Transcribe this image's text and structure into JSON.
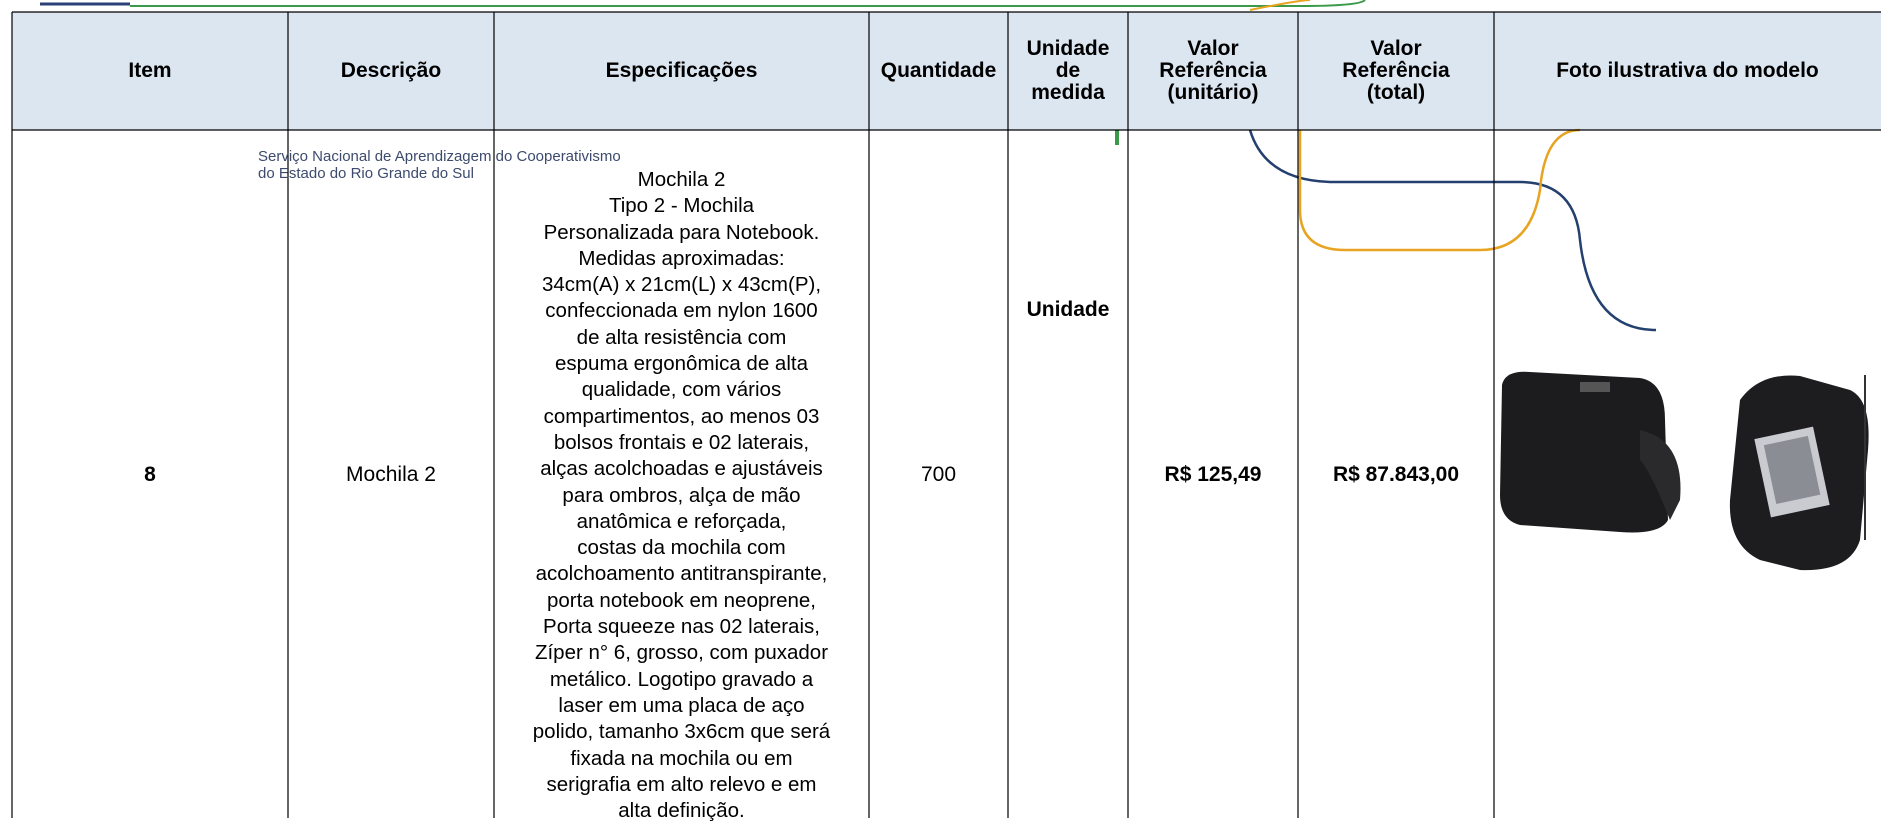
{
  "table": {
    "headers": [
      [
        "Item"
      ],
      [
        "Descrição"
      ],
      [
        "Especificações"
      ],
      [
        "Quantidade"
      ],
      [
        "Unidade",
        "de",
        "medida"
      ],
      [
        "Valor",
        "Referência",
        "(unitário)"
      ],
      [
        "Valor",
        "Referência",
        "(total)"
      ],
      [
        "Foto ilustrativa do modelo"
      ]
    ],
    "rows": [
      {
        "item": "8",
        "descricao": "Mochila 2",
        "especificacoes": [
          "Mochila 2",
          "Tipo 2 - Mochila",
          "Personalizada para Notebook.",
          "Medidas aproximadas:",
          "34cm(A) x 21cm(L) x 43cm(P),",
          "confeccionada em nylon 1600",
          "de alta resistência com",
          "espuma ergonômica de alta",
          "qualidade, com vários",
          "compartimentos, ao menos 03",
          "bolsos frontais e 02 laterais,",
          "alças acolchoadas e ajustáveis",
          "para ombros, alça de mão",
          "anatômica e reforçada,",
          "costas da mochila com",
          "acolchoamento antitranspirante,",
          "porta notebook em neoprene,",
          "Porta squeeze nas 02 laterais,",
          "Zíper n° 6, grosso, com puxador",
          "metálico. Logotipo gravado a",
          "laser em uma placa de aço",
          "polido, tamanho 3x6cm que será",
          "fixada na mochila ou em",
          "serigrafia em alto relevo e em",
          "alta definição."
        ],
        "quantidade": "700",
        "unidade": "Unidade",
        "valor_unitario": "R$ 125,49",
        "valor_total": "R$ 87.843,00"
      }
    ]
  },
  "watermark": {
    "lines": [
      "Serviço Nacional de Aprendizagem do Cooperativismo",
      "do Estado do Rio Grande do Sul"
    ]
  }
}
